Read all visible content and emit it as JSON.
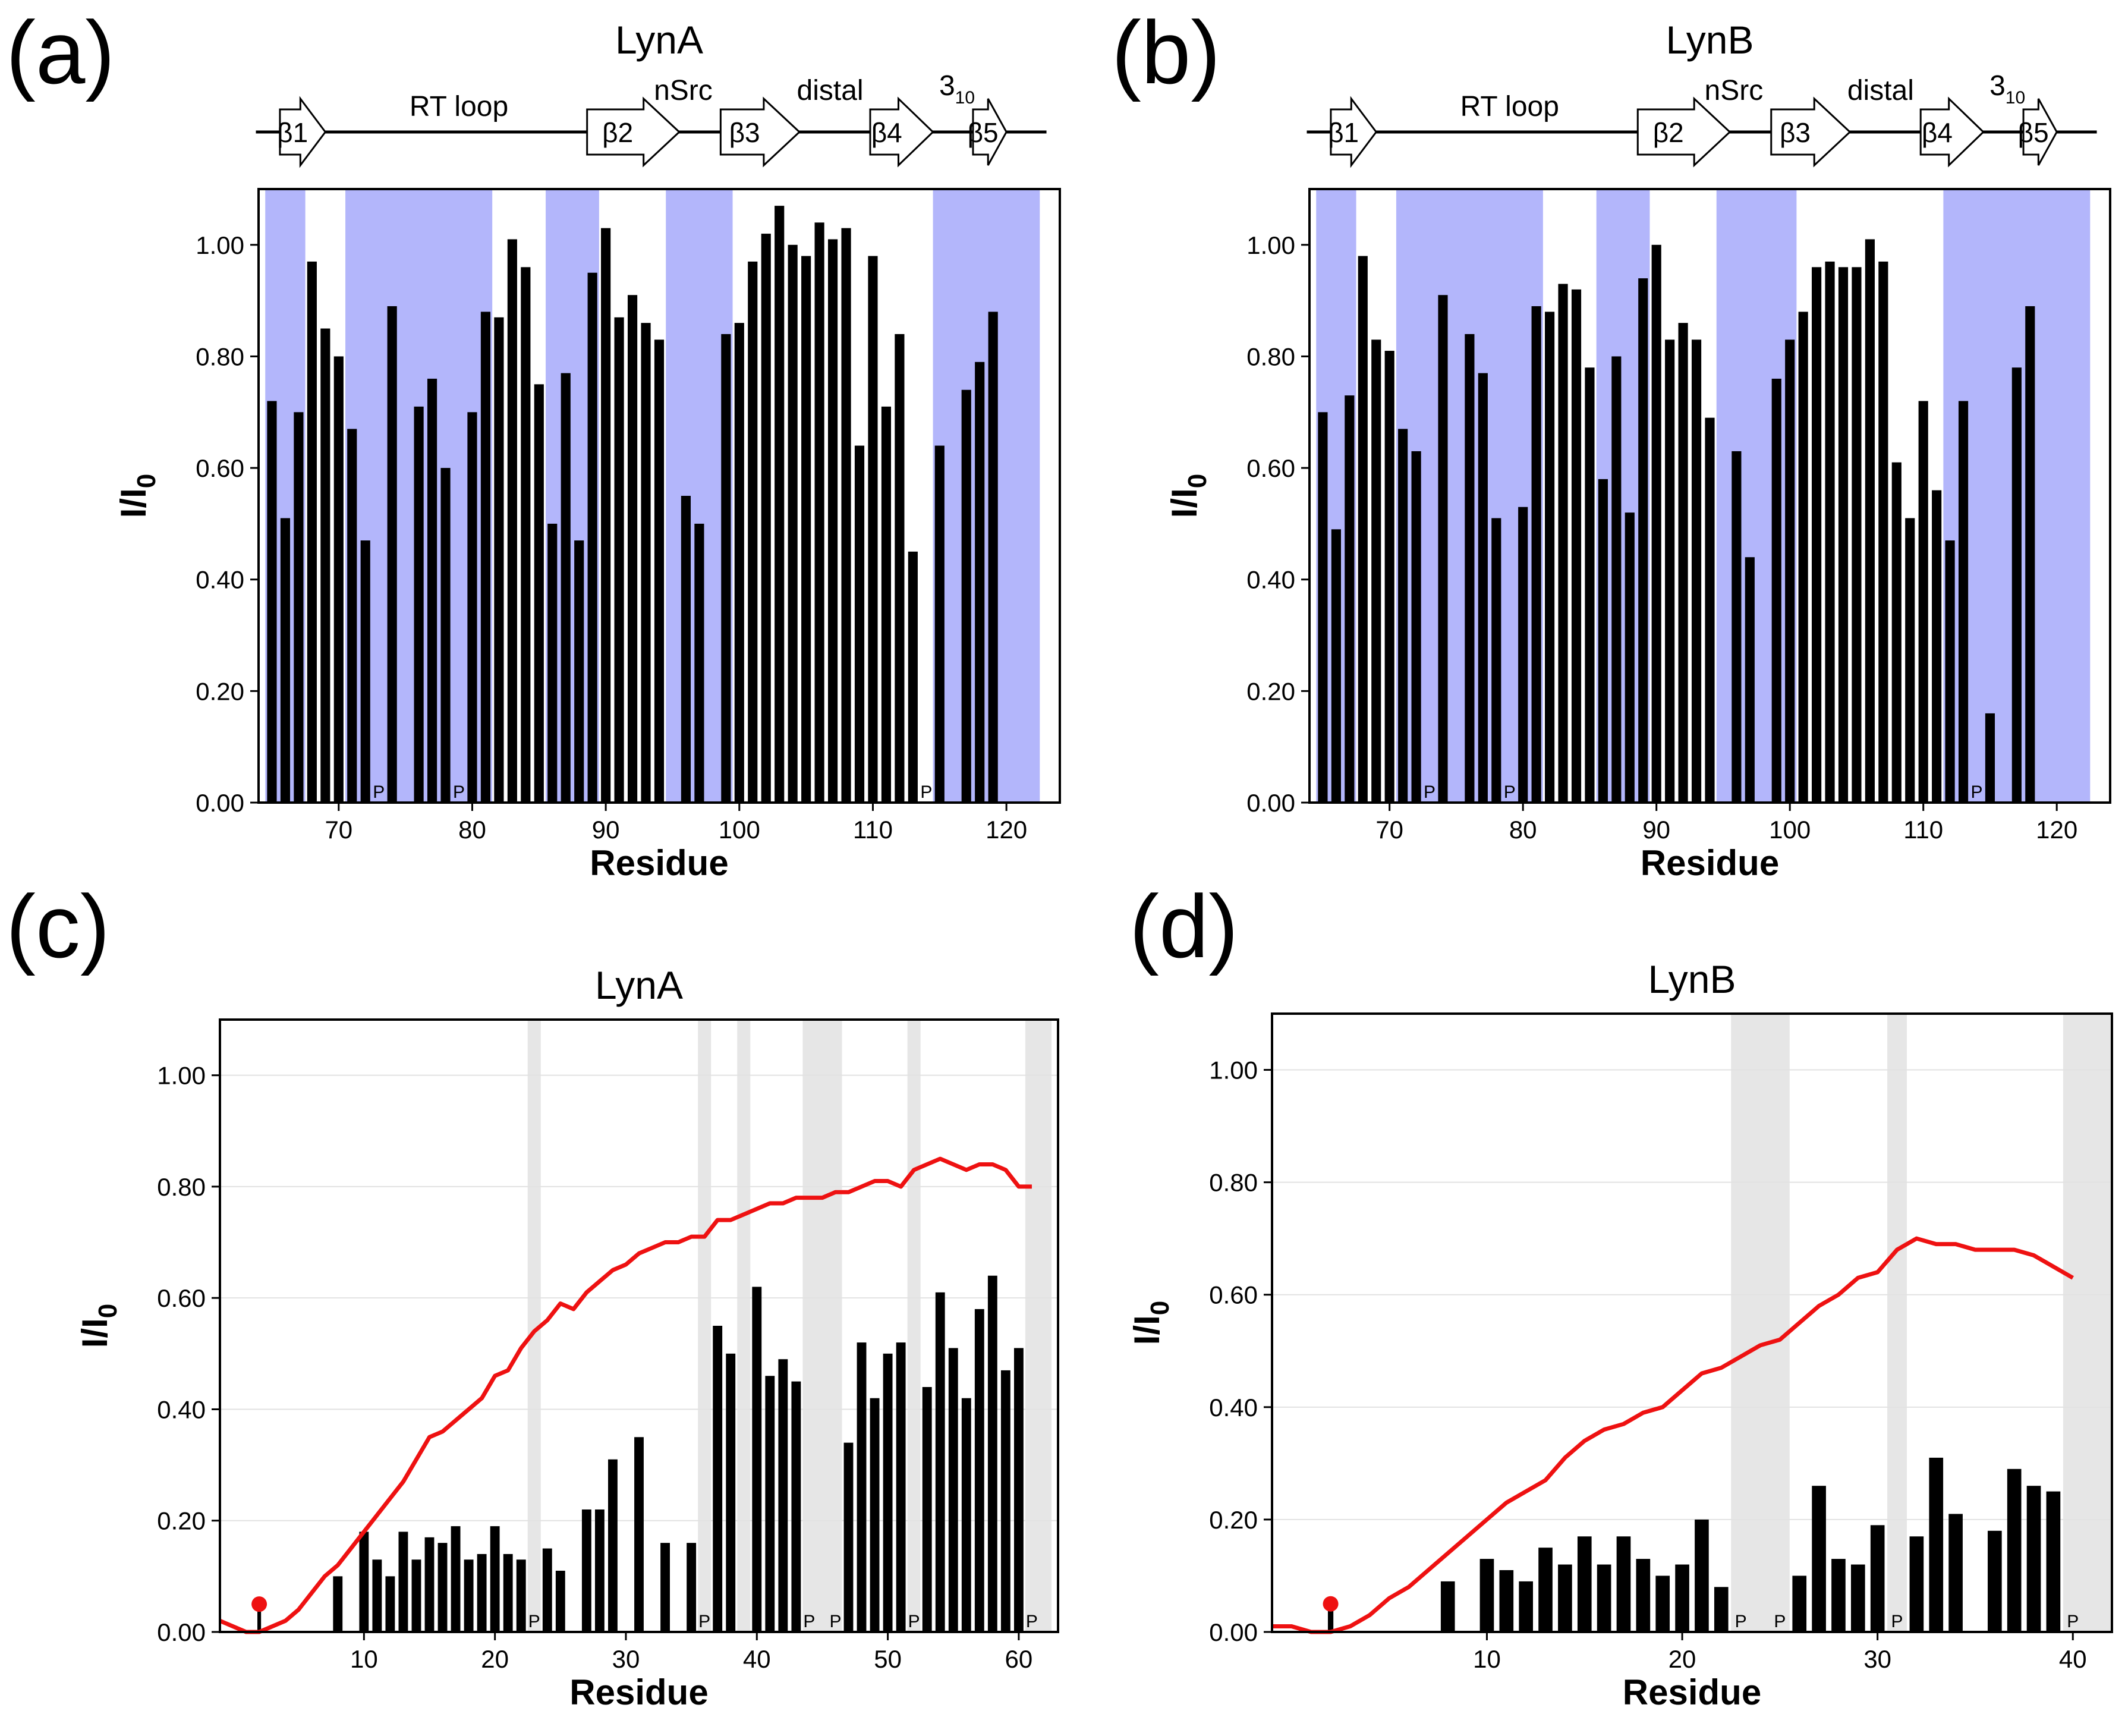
{
  "figure": {
    "y_axis_label_main": "I/I",
    "y_axis_label_sub": "0",
    "x_axis_label": "Residue",
    "proline_marker": "P"
  },
  "secondary_structure": {
    "strands": [
      "β1",
      "β2",
      "β3",
      "β4",
      "β5"
    ],
    "loops": [
      "RT loop",
      "nSrc",
      "distal"
    ],
    "helix_main": "3",
    "helix_sub": "10"
  },
  "colors": {
    "bar": "#000000",
    "shade_blue": "#b3b6fb",
    "shade_gray": "#e6e6e6",
    "curve": "#ee1111",
    "marker": "#ee1111"
  },
  "chart_data": [
    {
      "id": "a",
      "panel_label": "(a)",
      "type": "bar",
      "title": "LynA",
      "xlabel": "Residue",
      "ylabel": "I/I0",
      "xlim": [
        64,
        124
      ],
      "ylim": [
        0,
        1.1
      ],
      "xticks": [
        70,
        80,
        90,
        100,
        110,
        120
      ],
      "yticks": [
        0.0,
        0.2,
        0.4,
        0.6,
        0.8,
        1.0
      ],
      "ytick_labels": [
        "0.00",
        "0.20",
        "0.40",
        "0.60",
        "0.80",
        "1.00"
      ],
      "grid": false,
      "shaded_regions": [
        [
          64.5,
          67.5
        ],
        [
          70.5,
          81.5
        ],
        [
          85.5,
          89.5
        ],
        [
          94.5,
          99.5
        ],
        [
          114.5,
          122.5
        ]
      ],
      "residues": [
        65,
        66,
        67,
        68,
        69,
        70,
        71,
        72,
        74,
        76,
        77,
        78,
        80,
        81,
        82,
        83,
        84,
        85,
        86,
        87,
        88,
        89,
        90,
        91,
        92,
        93,
        94,
        96,
        97,
        99,
        100,
        101,
        102,
        103,
        104,
        105,
        106,
        107,
        108,
        109,
        110,
        111,
        112,
        113,
        115,
        117,
        118,
        119,
        121,
        122,
        123
      ],
      "values": [
        0.72,
        0.51,
        0.7,
        0.97,
        0.85,
        0.8,
        0.67,
        0.47,
        0.89,
        0.71,
        0.76,
        0.6,
        0.7,
        0.88,
        0.87,
        1.01,
        0.96,
        0.75,
        0.5,
        0.77,
        0.47,
        0.95,
        1.03,
        0.87,
        0.91,
        0.86,
        0.83,
        0.55,
        0.5,
        0.84,
        0.86,
        0.97,
        1.02,
        1.07,
        1.0,
        0.98,
        1.04,
        1.01,
        1.03,
        0.64,
        0.98,
        0.71,
        0.84,
        0.45,
        0.64,
        0.74,
        0.79,
        0.88,
        0,
        0,
        0
      ],
      "proline_residues": [
        73,
        79,
        114
      ],
      "dot_residues": [],
      "curve": [],
      "has_ss": true
    },
    {
      "id": "b",
      "panel_label": "(b)",
      "type": "bar",
      "title": "LynB",
      "xlabel": "Residue",
      "ylabel": "I/I0",
      "xlim": [
        64,
        124
      ],
      "ylim": [
        0,
        1.1
      ],
      "xticks": [
        70,
        80,
        90,
        100,
        110,
        120
      ],
      "yticks": [
        0.0,
        0.2,
        0.4,
        0.6,
        0.8,
        1.0
      ],
      "ytick_labels": [
        "0.00",
        "0.20",
        "0.40",
        "0.60",
        "0.80",
        "1.00"
      ],
      "grid": false,
      "shaded_regions": [
        [
          64.5,
          67.5
        ],
        [
          70.5,
          81.5
        ],
        [
          85.5,
          89.5
        ],
        [
          94.5,
          100.5
        ],
        [
          111.5,
          122.5
        ]
      ],
      "residues": [
        65,
        66,
        67,
        68,
        69,
        70,
        71,
        72,
        74,
        76,
        77,
        78,
        80,
        81,
        82,
        83,
        84,
        85,
        86,
        87,
        88,
        89,
        90,
        91,
        92,
        93,
        94,
        96,
        97,
        99,
        100,
        101,
        102,
        103,
        104,
        105,
        106,
        107,
        108,
        109,
        110,
        111,
        112,
        113,
        115,
        117,
        118,
        119,
        121,
        122,
        123
      ],
      "values": [
        0.7,
        0.49,
        0.73,
        0.98,
        0.83,
        0.81,
        0.67,
        0.63,
        0.91,
        0.84,
        0.77,
        0.51,
        0.53,
        0.89,
        0.88,
        0.93,
        0.92,
        0.78,
        0.58,
        0.8,
        0.52,
        0.94,
        1.0,
        0.83,
        0.86,
        0.83,
        0.69,
        0.63,
        0.44,
        0.76,
        0.83,
        0.88,
        0.96,
        0.97,
        0.96,
        0.96,
        1.01,
        0.97,
        0.61,
        0.51,
        0.72,
        0.56,
        0.47,
        0.72,
        0.16,
        0.78,
        0.89,
        0,
        0,
        0,
        0
      ],
      "proline_residues": [
        73,
        79,
        114
      ],
      "dot_residues": [],
      "curve": [],
      "has_ss": true
    },
    {
      "id": "c",
      "panel_label": "(c)",
      "type": "bar",
      "title": "LynA",
      "xlabel": "Residue",
      "ylabel": "I/I0",
      "xlim": [
        -1,
        63
      ],
      "ylim": [
        0,
        1.1
      ],
      "xticks": [
        10,
        20,
        30,
        40,
        50,
        60
      ],
      "yticks": [
        0.0,
        0.2,
        0.4,
        0.6,
        0.8,
        1.0
      ],
      "ytick_labels": [
        "0.00",
        "0.20",
        "0.40",
        "0.60",
        "0.80",
        "1.00"
      ],
      "grid": true,
      "shaded_regions": [
        [
          22.5,
          23.5
        ],
        [
          35.5,
          36.5
        ],
        [
          38.5,
          39.5
        ],
        [
          43.5,
          46.5
        ],
        [
          51.5,
          52.5
        ],
        [
          60.5,
          62.5
        ]
      ],
      "residues": [
        2,
        8,
        10,
        11,
        12,
        13,
        14,
        15,
        16,
        17,
        18,
        19,
        20,
        21,
        22,
        24,
        25,
        27,
        28,
        29,
        31,
        33,
        35,
        37,
        38,
        40,
        41,
        42,
        43,
        47,
        48,
        49,
        50,
        51,
        53,
        54,
        55,
        56,
        57,
        58,
        59,
        60
      ],
      "values": [
        0.05,
        0.1,
        0.18,
        0.13,
        0.1,
        0.18,
        0.13,
        0.17,
        0.16,
        0.19,
        0.13,
        0.14,
        0.19,
        0.14,
        0.13,
        0.15,
        0.11,
        0.22,
        0.22,
        0.31,
        0.35,
        0.16,
        0.16,
        0.55,
        0.5,
        0.62,
        0.46,
        0.49,
        0.45,
        0.34,
        0.52,
        0.42,
        0.5,
        0.52,
        0.44,
        0.61,
        0.51,
        0.42,
        0.58,
        0.64,
        0.47,
        0.51
      ],
      "proline_residues": [
        23,
        36,
        44,
        46,
        52,
        61
      ],
      "dot_residues": [
        2
      ],
      "curve_x": [
        -1,
        0,
        1,
        2,
        3,
        4,
        5,
        6,
        7,
        8,
        9,
        10,
        11,
        12,
        13,
        14,
        15,
        16,
        17,
        18,
        19,
        20,
        21,
        22,
        23,
        24,
        25,
        26,
        27,
        28,
        29,
        30,
        31,
        32,
        33,
        34,
        35,
        36,
        37,
        38,
        39,
        40,
        41,
        42,
        43,
        44,
        45,
        46,
        47,
        48,
        49,
        50,
        51,
        52,
        53,
        54,
        55,
        56,
        57,
        58,
        59,
        60,
        61
      ],
      "curve": [
        0.02,
        0.01,
        0.0,
        0.0,
        0.01,
        0.02,
        0.04,
        0.07,
        0.1,
        0.12,
        0.15,
        0.18,
        0.21,
        0.24,
        0.27,
        0.31,
        0.35,
        0.36,
        0.38,
        0.4,
        0.42,
        0.46,
        0.47,
        0.51,
        0.54,
        0.56,
        0.59,
        0.58,
        0.61,
        0.63,
        0.65,
        0.66,
        0.68,
        0.69,
        0.7,
        0.7,
        0.71,
        0.71,
        0.74,
        0.74,
        0.75,
        0.76,
        0.77,
        0.77,
        0.78,
        0.78,
        0.78,
        0.79,
        0.79,
        0.8,
        0.81,
        0.81,
        0.8,
        0.83,
        0.84,
        0.85,
        0.84,
        0.83,
        0.84,
        0.84,
        0.83,
        0.8,
        0.8
      ],
      "has_ss": false
    },
    {
      "id": "d",
      "panel_label": "(d)",
      "type": "bar",
      "title": "LynB",
      "xlabel": "Residue",
      "ylabel": "I/I0",
      "xlim": [
        -1,
        42
      ],
      "ylim": [
        0,
        1.1
      ],
      "xticks": [
        10,
        20,
        30,
        40
      ],
      "yticks": [
        0.0,
        0.2,
        0.4,
        0.6,
        0.8,
        1.0
      ],
      "ytick_labels": [
        "0.00",
        "0.20",
        "0.40",
        "0.60",
        "0.80",
        "1.00"
      ],
      "grid": true,
      "shaded_regions": [
        [
          22.5,
          25.5
        ],
        [
          30.5,
          31.5
        ],
        [
          39.5,
          42.0
        ]
      ],
      "residues": [
        2,
        8,
        10,
        11,
        12,
        13,
        14,
        15,
        16,
        17,
        18,
        19,
        20,
        21,
        22,
        26,
        27,
        28,
        29,
        30,
        32,
        33,
        34,
        36,
        37,
        38,
        39
      ],
      "values": [
        0.05,
        0.09,
        0.13,
        0.11,
        0.09,
        0.15,
        0.12,
        0.17,
        0.12,
        0.17,
        0.13,
        0.1,
        0.12,
        0.2,
        0.08,
        0.1,
        0.26,
        0.13,
        0.12,
        0.19,
        0.17,
        0.31,
        0.21,
        0.18,
        0.29,
        0.26,
        0.25
      ],
      "proline_residues": [
        23,
        25,
        31,
        40
      ],
      "dot_residues": [
        2
      ],
      "curve_x": [
        -1,
        0,
        1,
        2,
        3,
        4,
        5,
        6,
        7,
        8,
        9,
        10,
        11,
        12,
        13,
        14,
        15,
        16,
        17,
        18,
        19,
        20,
        21,
        22,
        23,
        24,
        25,
        26,
        27,
        28,
        29,
        30,
        31,
        32,
        33,
        34,
        35,
        36,
        37,
        38,
        39,
        40
      ],
      "curve": [
        0.01,
        0.01,
        0.0,
        0.0,
        0.01,
        0.03,
        0.06,
        0.08,
        0.11,
        0.14,
        0.17,
        0.2,
        0.23,
        0.25,
        0.27,
        0.31,
        0.34,
        0.36,
        0.37,
        0.39,
        0.4,
        0.43,
        0.46,
        0.47,
        0.49,
        0.51,
        0.52,
        0.55,
        0.58,
        0.6,
        0.63,
        0.64,
        0.68,
        0.7,
        0.69,
        0.69,
        0.68,
        0.68,
        0.68,
        0.67,
        0.65,
        0.63
      ],
      "has_ss": false
    }
  ]
}
